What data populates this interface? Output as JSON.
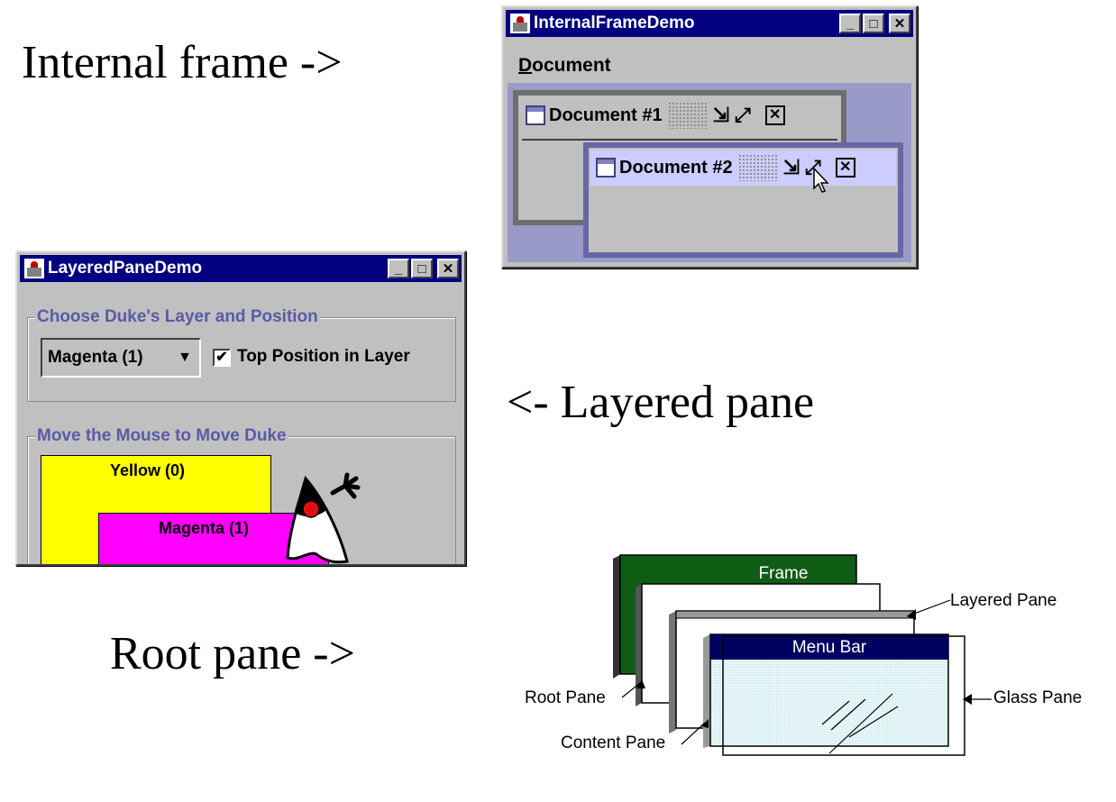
{
  "labels": {
    "internal_frame": "Internal frame ->",
    "layered_pane": "<- Layered pane",
    "root_pane": "Root pane ->"
  },
  "internal_frame_demo": {
    "title": "InternalFrameDemo",
    "menu": {
      "first_letter": "D",
      "rest": "ocument"
    },
    "doc1_title": "Document #1",
    "doc2_title": "Document #2",
    "minimize_glyph": "_",
    "maximize_glyph": "□",
    "close_glyph": "✕",
    "iconify_glyph": "⇲",
    "max_int_glyph": "⤢",
    "iclose_glyph": "✕"
  },
  "layered_pane_demo": {
    "title": "LayeredPaneDemo",
    "group1_title": "Choose Duke's Layer and Position",
    "combo_value": "Magenta (1)",
    "combo_arrow": "▼",
    "checkbox_mark": "✔",
    "checkbox_label": "Top Position in Layer",
    "group2_title": "Move the Mouse to Move Duke",
    "yellow_label": "Yellow (0)",
    "magenta_label": "Magenta (1)"
  },
  "root_pane_diagram": {
    "frame": "Frame",
    "menu_bar": "Menu Bar",
    "layered_pane": "Layered Pane",
    "root_pane": "Root Pane",
    "glass_pane": "Glass Pane",
    "content_pane": "Content Pane"
  },
  "colors": {
    "title_blue": "#000080",
    "desktop": "#9a9ac8",
    "group_title": "#5a5aa8",
    "yellow": "#ffff00",
    "magenta": "#ff00ff",
    "frame_green": "#0f5c14"
  }
}
